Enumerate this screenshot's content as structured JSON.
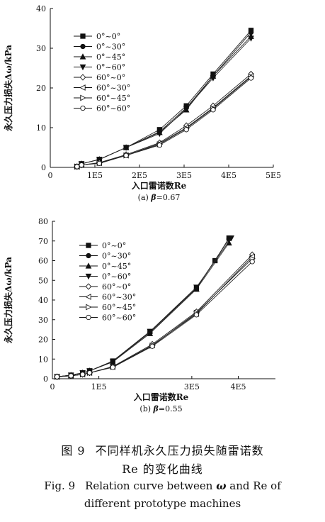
{
  "chart_data": [
    {
      "type": "line",
      "subtitle_parts": [
        "(a) ",
        "β",
        "=0.67"
      ],
      "xlabel": "入口雷诺数Re",
      "ylabel": "永久压力损失Δω/kPa",
      "xlim": [
        0,
        500000
      ],
      "ylim": [
        0,
        40
      ],
      "x_ticks": [
        0,
        100000,
        200000,
        300000,
        400000,
        500000
      ],
      "x_tick_labels": [
        "0",
        "1E5",
        "2E5",
        "3E5",
        "4E5",
        "5E5"
      ],
      "y_ticks": [
        0,
        10,
        20,
        30,
        40
      ],
      "y_tick_labels": [
        "0",
        "10",
        "20",
        "30",
        "40"
      ],
      "legend_position": "upper-left",
      "series": [
        {
          "name": "0°~0°",
          "marker": "square",
          "filled": true,
          "x": [
            60000,
            70000,
            110000,
            170000,
            245000,
            305000,
            365000,
            450000
          ],
          "y": [
            0.2,
            0.9,
            2.0,
            5.0,
            9.5,
            15.5,
            23.5,
            34.5
          ]
        },
        {
          "name": "0°~30°",
          "marker": "circle",
          "filled": true,
          "x": [
            60000,
            70000,
            110000,
            170000,
            245000,
            305000,
            365000,
            450000
          ],
          "y": [
            0.2,
            0.9,
            2.0,
            5.0,
            9.0,
            15.0,
            23.0,
            34.0
          ]
        },
        {
          "name": "0°~45°",
          "marker": "triangle-up",
          "filled": true,
          "x": [
            60000,
            70000,
            110000,
            170000,
            245000,
            305000,
            365000,
            450000
          ],
          "y": [
            0.2,
            0.9,
            2.0,
            5.0,
            8.8,
            14.5,
            23.0,
            33.0
          ]
        },
        {
          "name": "0°~60°",
          "marker": "triangle-down",
          "filled": true,
          "x": [
            60000,
            70000,
            110000,
            170000,
            245000,
            305000,
            365000,
            450000
          ],
          "y": [
            0.2,
            0.9,
            2.0,
            5.0,
            8.5,
            14.8,
            22.5,
            32.5
          ]
        },
        {
          "name": "60°~0°",
          "marker": "diamond",
          "filled": false,
          "x": [
            60000,
            70000,
            110000,
            170000,
            245000,
            305000,
            365000,
            450000
          ],
          "y": [
            0.2,
            0.6,
            1.2,
            3.2,
            6.2,
            10.5,
            15.5,
            23.5
          ]
        },
        {
          "name": "60°~30°",
          "marker": "triangle-left",
          "filled": false,
          "x": [
            60000,
            70000,
            110000,
            170000,
            245000,
            305000,
            365000,
            450000
          ],
          "y": [
            0.2,
            0.6,
            1.1,
            3.0,
            6.0,
            10.0,
            15.0,
            23.0
          ]
        },
        {
          "name": "60°~45°",
          "marker": "triangle-right",
          "filled": false,
          "x": [
            60000,
            70000,
            110000,
            170000,
            245000,
            305000,
            365000,
            450000
          ],
          "y": [
            0.2,
            0.6,
            1.1,
            3.0,
            5.8,
            9.8,
            14.8,
            22.8
          ]
        },
        {
          "name": "60°~60°",
          "marker": "circle",
          "filled": false,
          "x": [
            60000,
            70000,
            110000,
            170000,
            245000,
            305000,
            365000,
            450000
          ],
          "y": [
            0.2,
            0.6,
            1.0,
            3.0,
            5.6,
            9.5,
            14.5,
            22.5
          ]
        }
      ]
    },
    {
      "type": "line",
      "subtitle_parts": [
        "(b) ",
        "β",
        "=0.55"
      ],
      "xlabel": "入口雷诺数Re",
      "ylabel": "永久压力损失Δω/kPa",
      "xlim": [
        0,
        480000
      ],
      "ylim": [
        0,
        80
      ],
      "x_ticks": [
        0,
        100000,
        300000,
        400000
      ],
      "x_tick_labels": [
        "0",
        "1E5",
        "3E5",
        "4E5"
      ],
      "y_ticks": [
        0,
        10,
        20,
        30,
        40,
        50,
        60,
        70,
        80
      ],
      "y_tick_labels": [
        "0",
        "10",
        "20",
        "30",
        "40",
        "50",
        "60",
        "70",
        "80"
      ],
      "legend_position": "upper-left",
      "series": [
        {
          "name": "0°~0°",
          "marker": "square",
          "filled": true,
          "x": [
            10000,
            40000,
            65000,
            80000,
            130000,
            210000,
            310000,
            350000,
            380000
          ],
          "y": [
            1.0,
            1.8,
            3.0,
            4.0,
            9.0,
            24.0,
            46.0,
            60.0,
            71.5
          ]
        },
        {
          "name": "0°~30°",
          "marker": "circle",
          "filled": true,
          "x": [
            10000,
            40000,
            65000,
            80000,
            130000,
            210000,
            310000,
            380000
          ],
          "y": [
            1.0,
            1.8,
            3.0,
            4.0,
            8.8,
            23.5,
            46.0,
            71.0
          ]
        },
        {
          "name": "0°~45°",
          "marker": "triangle-up",
          "filled": true,
          "x": [
            10000,
            40000,
            65000,
            80000,
            130000,
            210000,
            310000,
            380000
          ],
          "y": [
            1.0,
            1.8,
            3.0,
            4.0,
            8.5,
            23.0,
            45.5,
            69.0
          ]
        },
        {
          "name": "0°~60°",
          "marker": "triangle-down",
          "filled": true,
          "x": [
            10000,
            40000,
            65000,
            80000,
            130000,
            210000,
            310000,
            385000
          ],
          "y": [
            1.0,
            1.8,
            3.0,
            4.0,
            8.8,
            24.0,
            46.5,
            71.5
          ]
        },
        {
          "name": "60°~0°",
          "marker": "diamond",
          "filled": false,
          "x": [
            10000,
            40000,
            65000,
            80000,
            130000,
            215000,
            310000,
            430000
          ],
          "y": [
            1.0,
            1.5,
            2.2,
            3.0,
            6.2,
            17.5,
            34.0,
            63.0
          ]
        },
        {
          "name": "60°~30°",
          "marker": "triangle-left",
          "filled": false,
          "x": [
            10000,
            40000,
            65000,
            80000,
            130000,
            215000,
            310000,
            430000
          ],
          "y": [
            1.0,
            1.5,
            2.2,
            3.0,
            6.0,
            17.0,
            33.0,
            62.0
          ]
        },
        {
          "name": "60°~45°",
          "marker": "triangle-right",
          "filled": false,
          "x": [
            10000,
            40000,
            65000,
            80000,
            130000,
            215000,
            310000,
            430000
          ],
          "y": [
            1.0,
            1.5,
            2.2,
            3.0,
            6.0,
            16.8,
            33.5,
            61.0
          ]
        },
        {
          "name": "60°~60°",
          "marker": "circle",
          "filled": false,
          "x": [
            10000,
            40000,
            65000,
            80000,
            130000,
            215000,
            310000,
            430000
          ],
          "y": [
            1.0,
            1.5,
            2.2,
            3.0,
            5.8,
            16.5,
            32.5,
            59.5
          ]
        }
      ]
    }
  ],
  "caption": {
    "zh_fig_no": "图 9",
    "zh_line1": "不同样机永久压力损失随雷诺数",
    "zh_line2": "Re 的变化曲线",
    "en_fig_no": "Fig. 9",
    "en_line1_pre": "Relation curve between ",
    "en_symbol": "ω",
    "en_line1_post": " and Re of",
    "en_line2": "different prototype machines"
  }
}
